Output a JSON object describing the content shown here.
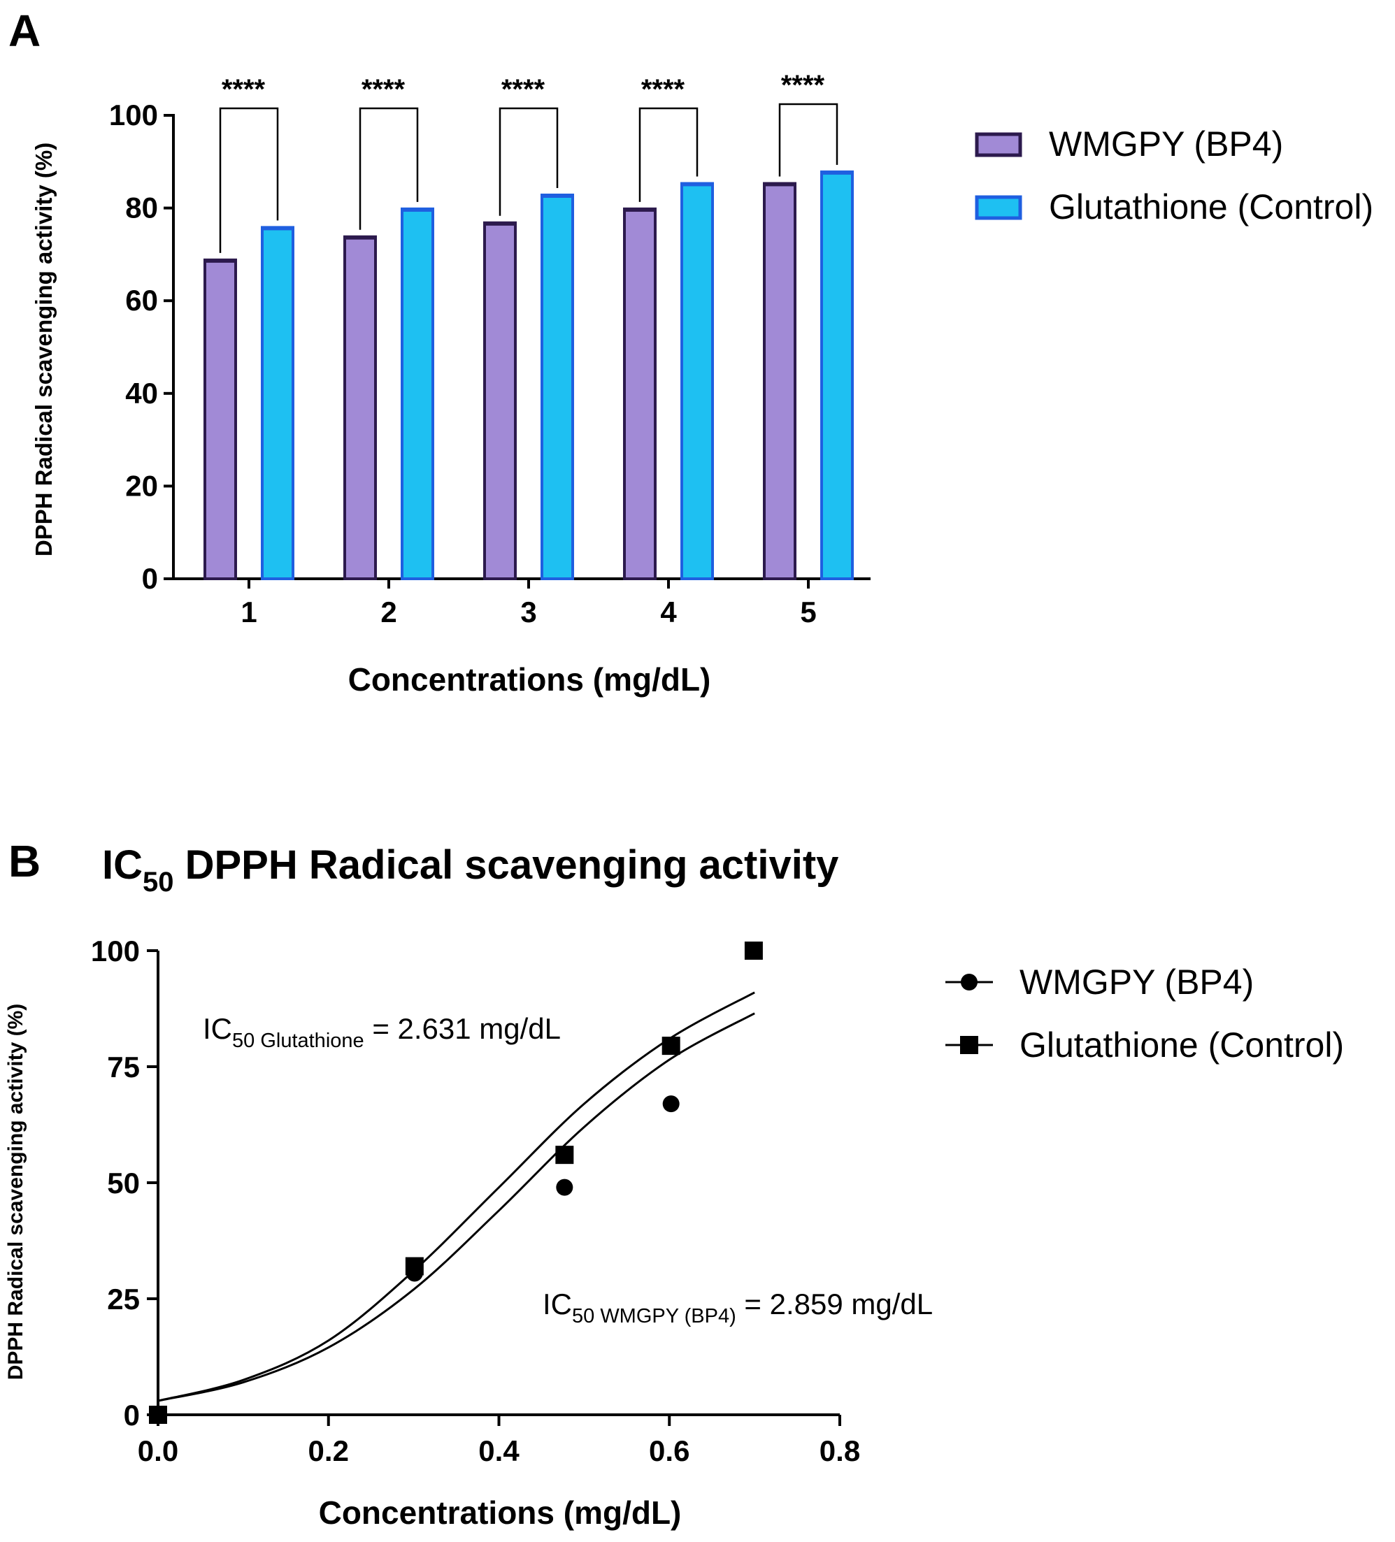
{
  "chart_data": [
    {
      "panel_letter": "A",
      "type": "bar",
      "title": "",
      "xlabel": "Concentrations (mg/dL)",
      "ylabel": "DPPH Radical scavenging activity (%)",
      "categories": [
        "1",
        "2",
        "3",
        "4",
        "5"
      ],
      "ylim": [
        0,
        100
      ],
      "yticks": [
        0,
        20,
        40,
        60,
        80,
        100
      ],
      "series": [
        {
          "name": "WMGPY (BP4)",
          "values": [
            68.5,
            73.5,
            76.5,
            79.5,
            85.0
          ],
          "fill": "#a18ad6",
          "stroke": "#2c1a4d"
        },
        {
          "name": "Glutathione (Control)",
          "values": [
            75.5,
            79.5,
            82.5,
            85.0,
            87.5
          ],
          "fill": "#1ec0f2",
          "stroke": "#1f5fe0"
        }
      ],
      "annotations": [
        "****",
        "****",
        "****",
        "****",
        "****"
      ],
      "grid": false,
      "legend_position": "right"
    },
    {
      "panel_letter": "B",
      "type": "scatter",
      "title_main": "IC",
      "title_sub": "50",
      "title_rest": " DPPH Radical scavenging activity",
      "xlabel": "Concentrations (mg/dL)",
      "ylabel": "DPPH Radical scavenging activity (%)",
      "xlim": [
        0.0,
        0.8
      ],
      "ylim": [
        0,
        100
      ],
      "xticks": [
        "0.0",
        "0.2",
        "0.4",
        "0.6",
        "0.8"
      ],
      "yticks": [
        "0",
        "25",
        "50",
        "75",
        "100"
      ],
      "series": [
        {
          "name": "WMGPY (BP4)",
          "marker": "circle",
          "x": [
            0.0,
            0.301,
            0.477,
            0.602,
            0.699
          ],
          "y": [
            0,
            30.5,
            49,
            67,
            100
          ],
          "ic50_label_main": "IC",
          "ic50_label_sub": "50 WMGPY (BP4)",
          "ic50_label_rest": " = 2.859 mg/dL"
        },
        {
          "name": "Glutathione (Control)",
          "marker": "square",
          "x": [
            0.0,
            0.301,
            0.477,
            0.602,
            0.699
          ],
          "y": [
            0,
            32,
            56,
            79.5,
            100
          ],
          "ic50_label_main": "IC",
          "ic50_label_sub": "50 Glutathione",
          "ic50_label_rest": " = 2.631 mg/dL"
        }
      ],
      "fits": [
        {
          "x": [
            0.0,
            0.1,
            0.2,
            0.3,
            0.4,
            0.5,
            0.6,
            0.7
          ],
          "y": [
            3,
            7.5,
            16,
            31,
            49,
            67,
            81,
            91
          ]
        },
        {
          "x": [
            0.0,
            0.1,
            0.2,
            0.3,
            0.4,
            0.5,
            0.6,
            0.7
          ],
          "y": [
            3,
            7,
            14.5,
            27,
            44,
            62,
            76.5,
            86.5
          ]
        }
      ],
      "grid": false,
      "legend_position": "right"
    }
  ]
}
